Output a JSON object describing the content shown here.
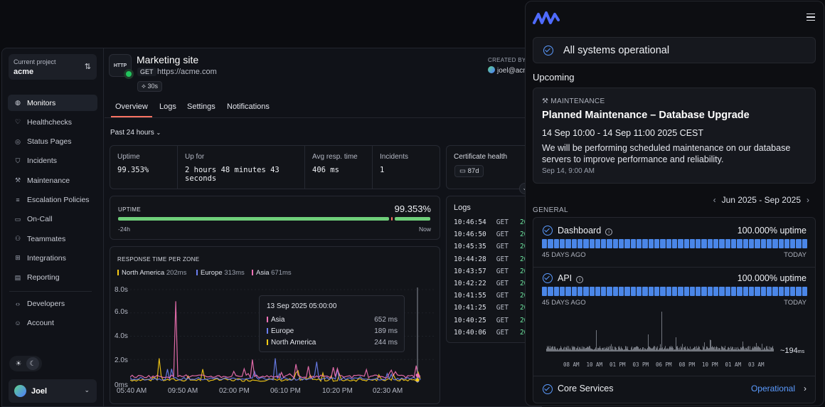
{
  "project": {
    "label": "Current project",
    "name": "acme"
  },
  "nav": [
    "Monitors",
    "Healthchecks",
    "Status Pages",
    "Incidents",
    "Maintenance",
    "Escalation Policies",
    "On-Call",
    "Teammates",
    "Integrations",
    "Reporting"
  ],
  "nav2": [
    "Developers",
    "Account"
  ],
  "nav_icons": [
    "globe-icon",
    "heart-icon",
    "broadcast-icon",
    "shield-icon",
    "wrench-icon",
    "escalation-icon",
    "calendar-icon",
    "users-icon",
    "puzzle-icon",
    "chart-icon",
    "code-icon",
    "user-icon"
  ],
  "user": {
    "name": "Joel"
  },
  "monitor": {
    "badge": "HTTP",
    "title": "Marketing site",
    "method": "GET",
    "url": "https://acme.com",
    "interval": "30s",
    "created_by_label": "CREATED BY",
    "created_by": "joel@acme"
  },
  "tabs": [
    "Overview",
    "Logs",
    "Settings",
    "Notifications"
  ],
  "range": "Past 24 hours",
  "stats": [
    {
      "label": "Uptime",
      "value": "99.353%"
    },
    {
      "label": "Up for",
      "value": "2 hours 48 minutes 43 seconds"
    },
    {
      "label": "Avg resp. time",
      "value": "406 ms"
    },
    {
      "label": "Incidents",
      "value": "1"
    }
  ],
  "cert": {
    "label": "Certificate health",
    "days": "87d"
  },
  "uptime": {
    "label": "UPTIME",
    "value": "99.353%",
    "start": "-24h",
    "end": "Now"
  },
  "chart_data": {
    "type": "line",
    "title": "RESPONSE TIME PER ZONE",
    "series": [
      {
        "name": "North America",
        "value": "202ms",
        "color": "#facc15"
      },
      {
        "name": "Europe",
        "value": "313ms",
        "color": "#6b7ff0"
      },
      {
        "name": "Asia",
        "value": "671ms",
        "color": "#f472b6"
      }
    ],
    "y_ticks": [
      "8.0s",
      "6.0s",
      "4.0s",
      "2.0s",
      "0ms"
    ],
    "x_ticks": [
      "05:40 AM",
      "09:50 AM",
      "02:00 PM",
      "06:10 PM",
      "10:20 PM",
      "02:30 AM"
    ],
    "ylim": [
      0,
      8
    ],
    "peaks": [
      {
        "series": "Asia",
        "x": 0.16,
        "y": 7.0
      },
      {
        "series": "North America",
        "x": 0.1,
        "y": 2.1
      },
      {
        "series": "Asia",
        "x": 0.42,
        "y": 2.0
      },
      {
        "series": "Europe",
        "x": 0.5,
        "y": 2.1
      },
      {
        "series": "Europe",
        "x": 0.64,
        "y": 1.8
      },
      {
        "series": "Asia",
        "x": 0.57,
        "y": 1.6
      }
    ],
    "tooltip": {
      "time": "13 Sep 2025 05:00:00",
      "rows": [
        {
          "name": "Asia",
          "value": "652 ms",
          "color": "#f472b6"
        },
        {
          "name": "Europe",
          "value": "189 ms",
          "color": "#6b7ff0"
        },
        {
          "name": "North America",
          "value": "244 ms",
          "color": "#facc15"
        }
      ]
    }
  },
  "logs": {
    "label": "Logs",
    "rows": [
      {
        "time": "10:46:54",
        "method": "GET",
        "status": "20"
      },
      {
        "time": "10:46:50",
        "method": "GET",
        "status": "20"
      },
      {
        "time": "10:45:35",
        "method": "GET",
        "status": "20"
      },
      {
        "time": "10:44:28",
        "method": "GET",
        "status": "20"
      },
      {
        "time": "10:43:57",
        "method": "GET",
        "status": "20"
      },
      {
        "time": "10:42:22",
        "method": "GET",
        "status": "20"
      },
      {
        "time": "10:41:55",
        "method": "GET",
        "status": "20"
      },
      {
        "time": "10:41:25",
        "method": "GET",
        "status": "20"
      },
      {
        "time": "10:40:25",
        "method": "GET",
        "status": "20"
      },
      {
        "time": "10:40:06",
        "method": "GET",
        "status": "20"
      }
    ]
  },
  "status": {
    "overall": "All systems operational",
    "upcoming_label": "Upcoming",
    "maintenance": {
      "label": "MAINTENANCE",
      "title": "Planned Maintenance – Database Upgrade",
      "dates": "14 Sep 10:00 - 14 Sep 11:00 2025 CEST",
      "description": "We will be performing scheduled maintenance on our database servers to improve performance and reliability.",
      "posted": "Sep 14, 9:00 AM"
    },
    "period": "Jun 2025 - Sep 2025",
    "group": "GENERAL",
    "services": [
      {
        "name": "Dashboard",
        "uptime": "100.000% uptime",
        "start": "45 DAYS AGO",
        "end": "TODAY"
      },
      {
        "name": "API",
        "uptime": "100.000% uptime",
        "start": "45 DAYS AGO",
        "end": "TODAY"
      }
    ],
    "avg_response": "~194",
    "avg_unit": "ms",
    "spark_ticks": [
      "08 AM",
      "10 AM",
      "01 PM",
      "03 PM",
      "06 PM",
      "08 PM",
      "10 PM",
      "01 AM",
      "03 AM"
    ],
    "core": {
      "name": "Core Services",
      "status": "Operational"
    }
  }
}
